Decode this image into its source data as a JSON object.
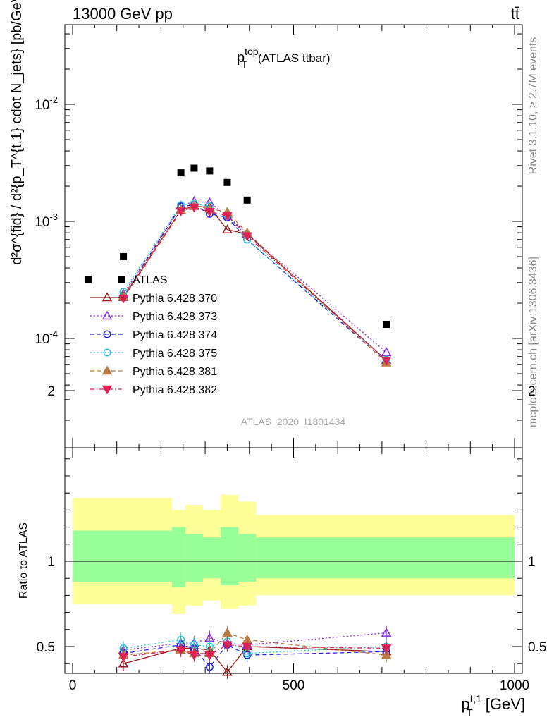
{
  "header": {
    "energy": "13000 GeV pp",
    "process": "tt̄"
  },
  "side_text": {
    "rivet": "Rivet 3.1.10, ≥ 2.7M events",
    "site": "mcplots.cern.ch [arXiv:1306.3436]"
  },
  "chart_data": {
    "type": "scatter",
    "title": "p_T^top (ATLAS ttbar)",
    "title_main": "p",
    "title_sup": "top",
    "title_sub": "T",
    "title_rest": " (ATLAS ttbar)",
    "analysis": "ATLAS_2020_I1801434",
    "xlabel": "p_T^{t,1} [GeV]",
    "ylabel": "d²σ^{fid} / d²{p_T^{t,1} cdot N_jets} [pb/GeV]",
    "ratio_ylabel": "Ratio to ATLAS",
    "xlim": [
      -20,
      1020
    ],
    "ylim": [
      1.2e-05,
      0.007
    ],
    "yscale": "log",
    "ratio_ylim": [
      0.33,
      2.3
    ],
    "x_ticks": [
      0,
      500,
      1000
    ],
    "y_ticks": [
      "10^-4",
      "10^-3",
      "10^-2"
    ],
    "ratio_ticks": [
      0.5,
      1,
      2
    ],
    "legend_position": "center-left",
    "data": {
      "name": "ATLAS",
      "x": [
        35,
        115,
        245,
        275,
        310,
        350,
        395,
        710
      ],
      "y": [
        0.00032,
        0.0005,
        0.0026,
        0.00285,
        0.0027,
        0.00215,
        0.00152,
        0.000132
      ],
      "band_x": [
        [
          0,
          225
        ],
        [
          225,
          255
        ],
        [
          255,
          295
        ],
        [
          295,
          335
        ],
        [
          335,
          375
        ],
        [
          375,
          415
        ],
        [
          415,
          1000
        ]
      ],
      "band_inner": [
        [
          0.88,
          1.18
        ],
        [
          0.85,
          1.2
        ],
        [
          0.88,
          1.16
        ],
        [
          0.9,
          1.14
        ],
        [
          0.86,
          1.2
        ],
        [
          0.88,
          1.16
        ],
        [
          0.9,
          1.14
        ]
      ],
      "band_outer": [
        [
          0.75,
          1.37
        ],
        [
          0.69,
          1.3
        ],
        [
          0.74,
          1.33
        ],
        [
          0.77,
          1.3
        ],
        [
          0.72,
          1.39
        ],
        [
          0.74,
          1.35
        ],
        [
          0.8,
          1.27
        ]
      ]
    },
    "series": [
      {
        "name": "Pythia 6.428 370",
        "color": "#9b1b1b",
        "dash": "",
        "marker": "triangle-up-open",
        "x": [
          115,
          245,
          275,
          310,
          350,
          395,
          710
        ],
        "y": [
          0.000225,
          0.00125,
          0.00135,
          0.00132,
          0.00085,
          0.00078,
          6.5e-05
        ],
        "ratio": [
          0.4,
          0.49,
          0.49,
          0.48,
          0.35,
          0.5,
          0.47
        ]
      },
      {
        "name": "Pythia 6.428 373",
        "color": "#8a2be2",
        "dash": "2,3",
        "marker": "triangle-up-open",
        "x": [
          115,
          245,
          275,
          310,
          350,
          395,
          710
        ],
        "y": [
          0.00024,
          0.00136,
          0.00148,
          0.00145,
          0.00112,
          0.00078,
          7.6e-05
        ],
        "ratio": [
          0.48,
          0.52,
          0.52,
          0.55,
          0.52,
          0.51,
          0.58
        ]
      },
      {
        "name": "Pythia 6.428 374",
        "color": "#2222dd",
        "dash": "6,4",
        "marker": "circle-open",
        "x": [
          115,
          245,
          275,
          310,
          350,
          395,
          710
        ],
        "y": [
          0.00023,
          0.00134,
          0.00138,
          0.00116,
          0.00108,
          0.0007,
          6.3e-05
        ],
        "ratio": [
          0.46,
          0.51,
          0.49,
          0.38,
          0.51,
          0.45,
          0.47
        ]
      },
      {
        "name": "Pythia 6.428 375",
        "color": "#22cccc",
        "dash": "2,3",
        "marker": "circle-open",
        "x": [
          115,
          245,
          275,
          310,
          350,
          395,
          710
        ],
        "y": [
          0.00025,
          0.00138,
          0.00142,
          0.00135,
          0.00113,
          0.0007,
          6.6e-05
        ],
        "ratio": [
          0.49,
          0.54,
          0.51,
          0.5,
          0.53,
          0.46,
          0.5
        ]
      },
      {
        "name": "Pythia 6.428 381",
        "color": "#b87a40",
        "dash": "6,4",
        "marker": "triangle-up-filled",
        "x": [
          115,
          245,
          275,
          310,
          350,
          395,
          710
        ],
        "y": [
          0.00023,
          0.00126,
          0.00136,
          0.00128,
          0.0012,
          0.0008,
          6.2e-05
        ],
        "ratio": [
          0.45,
          0.48,
          0.46,
          0.46,
          0.58,
          0.54,
          0.45
        ]
      },
      {
        "name": "Pythia 6.428 382",
        "color": "#dd2255",
        "dash": "6,3,1,3",
        "marker": "triangle-down-filled",
        "x": [
          115,
          245,
          275,
          310,
          350,
          395,
          710
        ],
        "y": [
          0.00022,
          0.00122,
          0.00132,
          0.00121,
          0.00112,
          0.00075,
          6.5e-05
        ],
        "ratio": [
          0.44,
          0.48,
          0.45,
          0.45,
          0.51,
          0.5,
          0.49
        ]
      }
    ]
  }
}
